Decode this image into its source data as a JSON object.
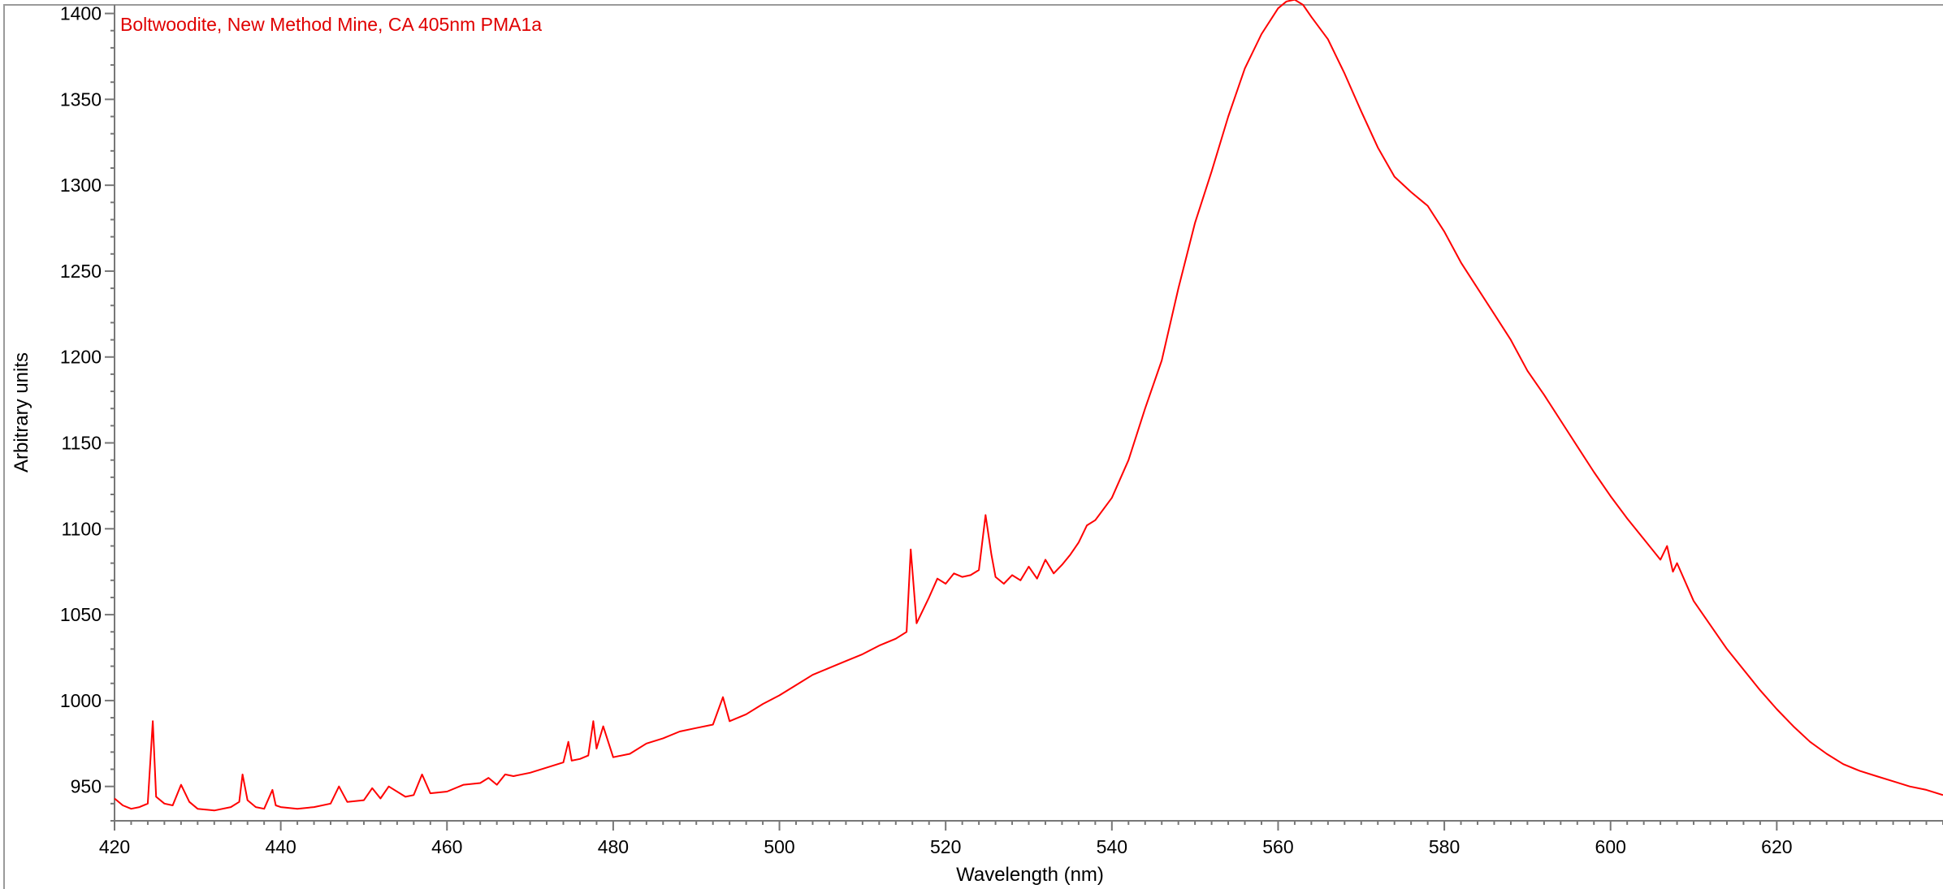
{
  "chart_data": {
    "type": "line",
    "title": "Boltwoodite, New Method Mine, CA 405nm PMA1a",
    "xlabel": "Wavelength (nm)",
    "ylabel": "Arbitrary units",
    "xlim": [
      420,
      640
    ],
    "ylim": [
      930,
      1405
    ],
    "x_ticks": [
      420,
      440,
      460,
      480,
      500,
      520,
      540,
      560,
      580,
      600,
      620
    ],
    "y_ticks": [
      950,
      1000,
      1050,
      1100,
      1150,
      1200,
      1250,
      1300,
      1350,
      1400
    ],
    "grid": false,
    "legend": "none",
    "series": [
      {
        "color": "#ff0000",
        "x": [
          420,
          421,
          422,
          423,
          424,
          424.6,
          425,
          426,
          427,
          428,
          429,
          430,
          432,
          434,
          435,
          435.4,
          436,
          437,
          438,
          439,
          439.4,
          440,
          442,
          444,
          446,
          447,
          448,
          450,
          451,
          452,
          453,
          455,
          456,
          457,
          458,
          460,
          462,
          464,
          465,
          466,
          467,
          468,
          470,
          472,
          474,
          474.6,
          475,
          476,
          477,
          477.6,
          478,
          478.8,
          480,
          482,
          484,
          486,
          488,
          490,
          492,
          493.2,
          494,
          496,
          498,
          500,
          502,
          504,
          506,
          508,
          510,
          512,
          514,
          515.3,
          515.8,
          516.5,
          518,
          519,
          520,
          521,
          522,
          523,
          524,
          524.8,
          525.5,
          526,
          527,
          528,
          529,
          530,
          531,
          532,
          533,
          534,
          535,
          536,
          537,
          538,
          540,
          542,
          544,
          546,
          548,
          550,
          552,
          554,
          556,
          558,
          560,
          561,
          562,
          563,
          564,
          566,
          568,
          570,
          572,
          574,
          576,
          577.5,
          578,
          580,
          582,
          584,
          586,
          588,
          590,
          592,
          594,
          596,
          598,
          600,
          602,
          604,
          606,
          606.8,
          607.5,
          608,
          610,
          612,
          614,
          616,
          618,
          620,
          622,
          624,
          626,
          628,
          630,
          632,
          634,
          636,
          638,
          640
        ],
        "y": [
          943,
          939,
          937,
          938,
          940,
          988,
          944,
          940,
          939,
          951,
          941,
          937,
          936,
          938,
          941,
          957,
          942,
          938,
          937,
          948,
          939,
          938,
          937,
          938,
          940,
          950,
          941,
          942,
          949,
          943,
          950,
          944,
          945,
          957,
          946,
          947,
          951,
          952,
          955,
          951,
          957,
          956,
          958,
          961,
          964,
          976,
          965,
          966,
          968,
          988,
          972,
          985,
          967,
          969,
          975,
          978,
          982,
          984,
          986,
          1002,
          988,
          992,
          998,
          1003,
          1009,
          1015,
          1019,
          1023,
          1027,
          1032,
          1036,
          1040,
          1088,
          1045,
          1060,
          1071,
          1068,
          1074,
          1072,
          1073,
          1076,
          1108,
          1085,
          1072,
          1068,
          1073,
          1070,
          1078,
          1071,
          1082,
          1074,
          1079,
          1085,
          1092,
          1102,
          1105,
          1118,
          1140,
          1170,
          1198,
          1240,
          1278,
          1308,
          1340,
          1368,
          1388,
          1403,
          1407,
          1408,
          1405,
          1398,
          1385,
          1365,
          1343,
          1322,
          1305,
          1296,
          1290,
          1288,
          1273,
          1255,
          1240,
          1225,
          1210,
          1192,
          1178,
          1163,
          1148,
          1133,
          1119,
          1106,
          1094,
          1082,
          1090,
          1075,
          1080,
          1058,
          1044,
          1030,
          1018,
          1006,
          995,
          985,
          976,
          969,
          963,
          959,
          956,
          953,
          950,
          948,
          945
        ]
      }
    ]
  }
}
